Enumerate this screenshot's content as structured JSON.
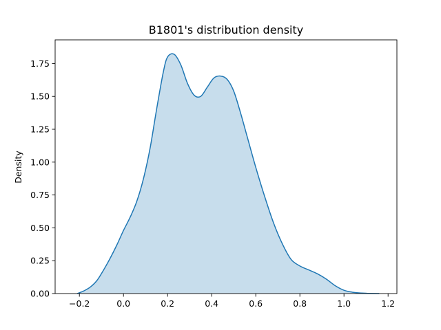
{
  "chart_data": {
    "type": "area",
    "title": "B1801's distribution density",
    "xlabel": "",
    "ylabel": "Density",
    "xlim": [
      -0.31,
      1.24
    ],
    "ylim": [
      0,
      1.93
    ],
    "xticks": [
      -0.2,
      0.0,
      0.2,
      0.4,
      0.6,
      0.8,
      1.0,
      1.2
    ],
    "xtick_labels": [
      "−0.2",
      "0.0",
      "0.2",
      "0.4",
      "0.6",
      "0.8",
      "1.0",
      "1.2"
    ],
    "yticks": [
      0.0,
      0.25,
      0.5,
      0.75,
      1.0,
      1.25,
      1.5,
      1.75
    ],
    "ytick_labels": [
      "0.00",
      "0.25",
      "0.50",
      "0.75",
      "1.00",
      "1.25",
      "1.50",
      "1.75"
    ],
    "grid": false,
    "legend": "none",
    "series": [
      {
        "line_color": "#1f77b4",
        "fill_color": "#1f77b4",
        "fill_opacity": 0.25,
        "x": [
          -0.21,
          -0.18,
          -0.15,
          -0.12,
          -0.09,
          -0.06,
          -0.03,
          0.0,
          0.03,
          0.06,
          0.09,
          0.12,
          0.15,
          0.18,
          0.2,
          0.23,
          0.26,
          0.29,
          0.32,
          0.35,
          0.38,
          0.41,
          0.44,
          0.47,
          0.5,
          0.53,
          0.56,
          0.6,
          0.64,
          0.68,
          0.72,
          0.76,
          0.8,
          0.84,
          0.88,
          0.92,
          0.96,
          1.0,
          1.04,
          1.08,
          1.12,
          1.16
        ],
        "y": [
          0.0,
          0.02,
          0.05,
          0.1,
          0.18,
          0.27,
          0.37,
          0.48,
          0.58,
          0.7,
          0.87,
          1.1,
          1.4,
          1.68,
          1.8,
          1.82,
          1.74,
          1.6,
          1.51,
          1.5,
          1.57,
          1.64,
          1.655,
          1.63,
          1.54,
          1.38,
          1.2,
          0.96,
          0.74,
          0.54,
          0.38,
          0.26,
          0.21,
          0.18,
          0.15,
          0.11,
          0.06,
          0.025,
          0.01,
          0.004,
          0.001,
          0.0
        ]
      }
    ]
  }
}
